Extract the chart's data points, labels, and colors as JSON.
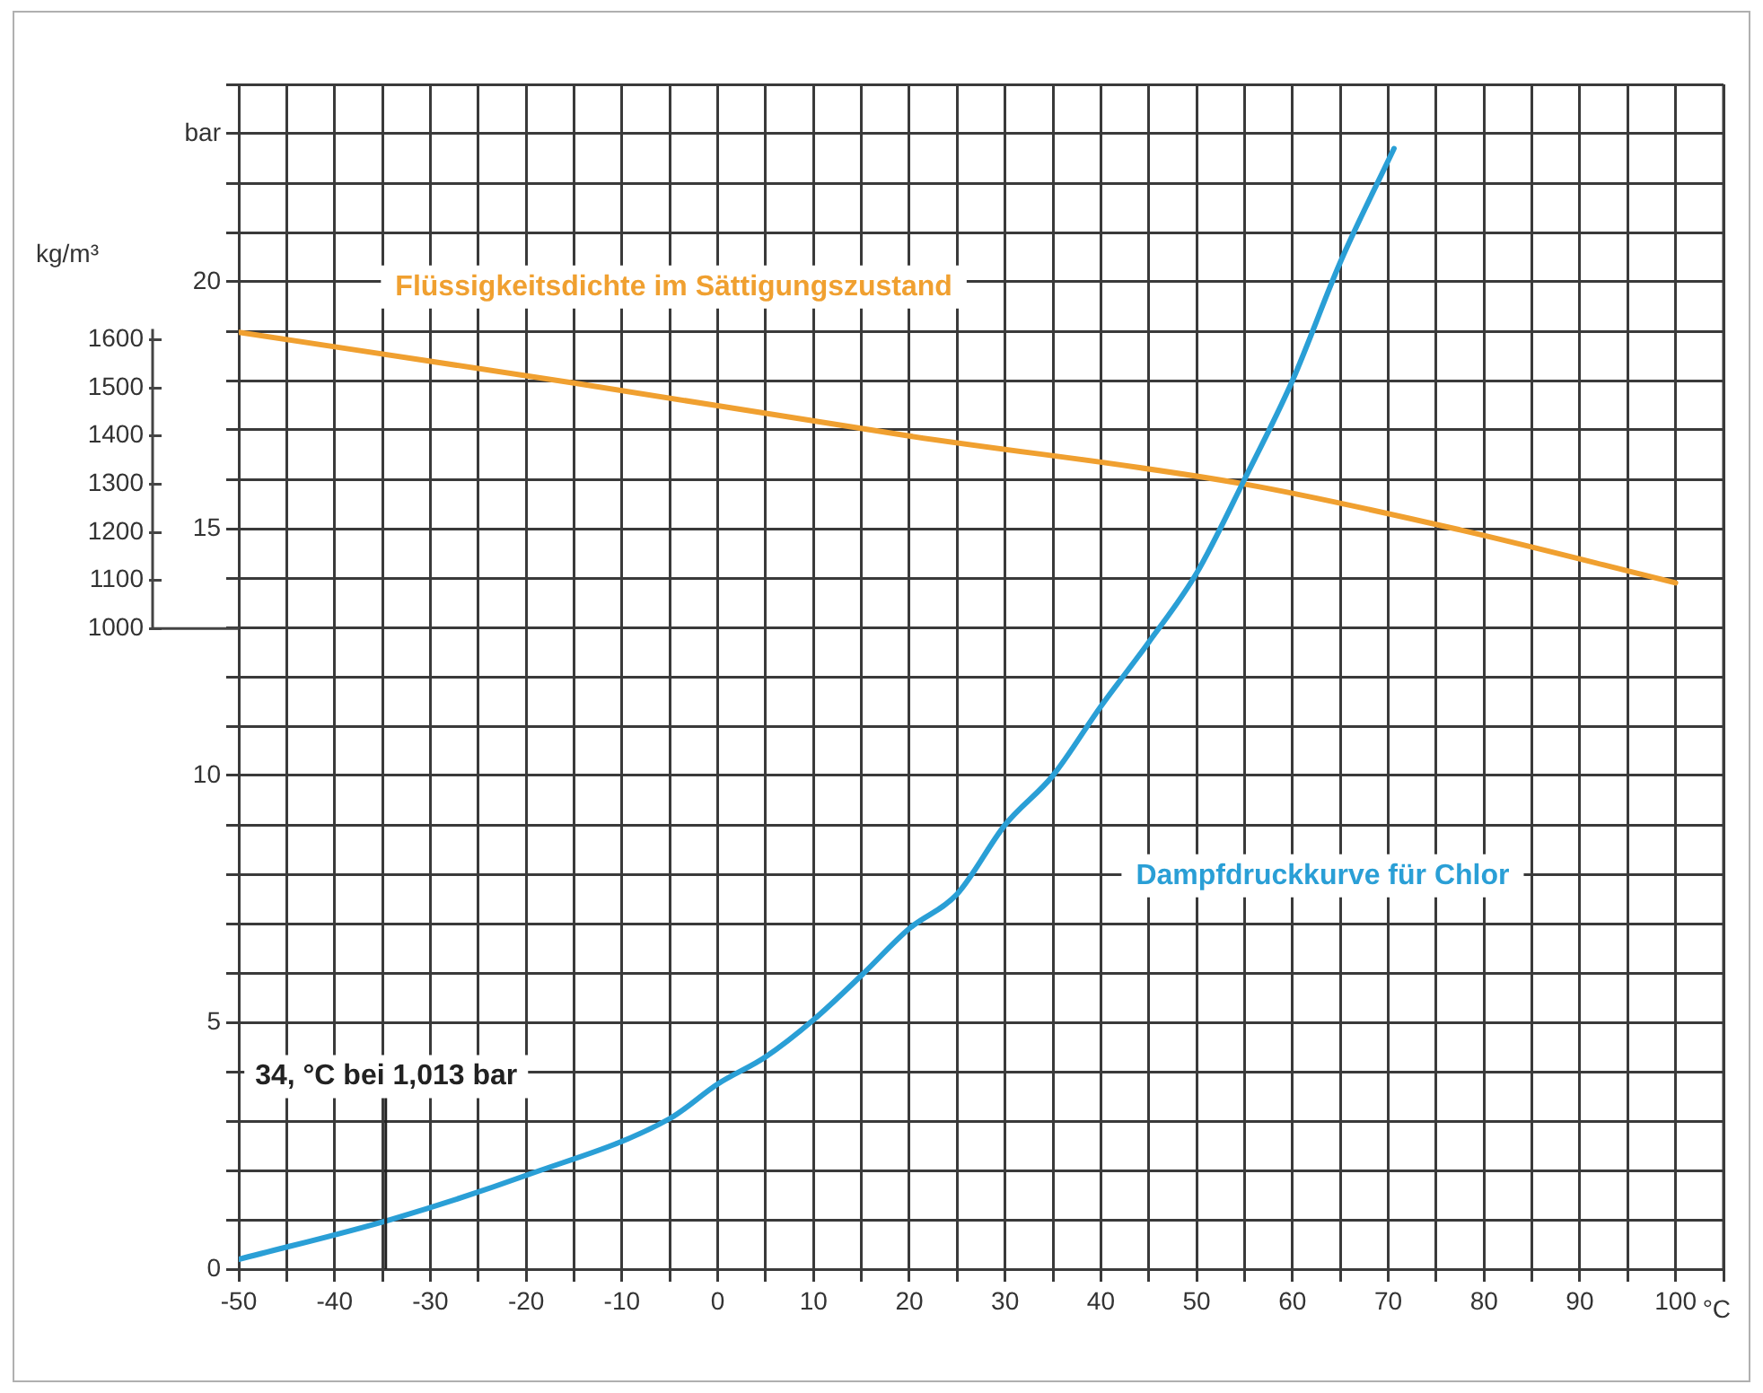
{
  "chart_data": {
    "type": "line",
    "xlabel": "°C",
    "y2label": "kg/m³",
    "xlim": [
      -50,
      105
    ],
    "xticks": [
      -50,
      {
        "value": -45,
        "label": null
      },
      -40,
      {
        "value": -35,
        "label": null
      },
      -30,
      {
        "value": -25,
        "label": null
      },
      -20,
      {
        "value": -15,
        "label": null
      },
      -10,
      {
        "value": -5,
        "label": null
      },
      0,
      {
        "value": 5,
        "label": null
      },
      10,
      {
        "value": 15,
        "label": null
      },
      20,
      {
        "value": 25,
        "label": null
      },
      30,
      {
        "value": 35,
        "label": null
      },
      40,
      {
        "value": 45,
        "label": null
      },
      50,
      {
        "value": 55,
        "label": null
      },
      60,
      {
        "value": 65,
        "label": null
      },
      70,
      {
        "value": 75,
        "label": null
      },
      80,
      {
        "value": 85,
        "label": null
      },
      90,
      {
        "value": 95,
        "label": null
      },
      100,
      {
        "value": 105,
        "label": null
      }
    ],
    "ylim": [
      0,
      24
    ],
    "yticks": [
      0,
      {
        "value": 1,
        "label": null
      },
      {
        "value": 2,
        "label": null
      },
      {
        "value": 3,
        "label": null
      },
      {
        "value": 4,
        "label": null
      },
      5,
      {
        "value": 6,
        "label": null
      },
      {
        "value": 7,
        "label": null
      },
      {
        "value": 8,
        "label": null
      },
      {
        "value": 9,
        "label": null
      },
      10,
      {
        "value": 11,
        "label": null
      },
      {
        "value": 12,
        "label": null
      },
      {
        "value": 13,
        "label": null
      },
      {
        "value": 14,
        "label": null
      },
      15,
      {
        "value": 16,
        "label": null
      },
      {
        "value": 17,
        "label": null
      },
      {
        "value": 18,
        "label": null
      },
      {
        "value": 19,
        "label": null
      },
      20,
      {
        "value": 21,
        "label": null
      },
      {
        "value": 22,
        "label": null
      },
      {
        "value": 23,
        "label": "bar"
      },
      {
        "value": 24,
        "label": null
      }
    ],
    "y2lim": [
      -330,
      2130
    ],
    "y2ticks": [
      1000,
      1100,
      1200,
      1300,
      1400,
      1500,
      1600
    ],
    "grid": true,
    "marker": "none",
    "line_style": "solid",
    "series": [
      {
        "name": "Dampfdruckkurve für Chlor",
        "color": "#2a9fd6",
        "x": [
          -50,
          -34,
          -20,
          -5,
          0,
          5,
          10,
          15,
          20,
          25,
          30,
          35,
          40,
          45,
          50,
          55,
          60,
          65,
          70.6
        ],
        "values": [
          0.2,
          1.013,
          1.9,
          3.05,
          3.75,
          4.3,
          5.05,
          5.95,
          6.9,
          7.6,
          9.0,
          10.0,
          11.4,
          12.7,
          14.1,
          16.0,
          18.0,
          20.4,
          22.7
        ]
      },
      {
        "name": "Flüssigkeitsdichte im Sättigungszustand",
        "color": "#f0a030",
        "axis": "y2",
        "x": [
          -50,
          -15,
          20,
          55,
          77.5,
          100
        ],
        "values": [
          1615,
          1510,
          1400,
          1300,
          1205,
          1095
        ]
      }
    ],
    "annotations": [
      "34, °C bei 1,013 bar"
    ]
  }
}
